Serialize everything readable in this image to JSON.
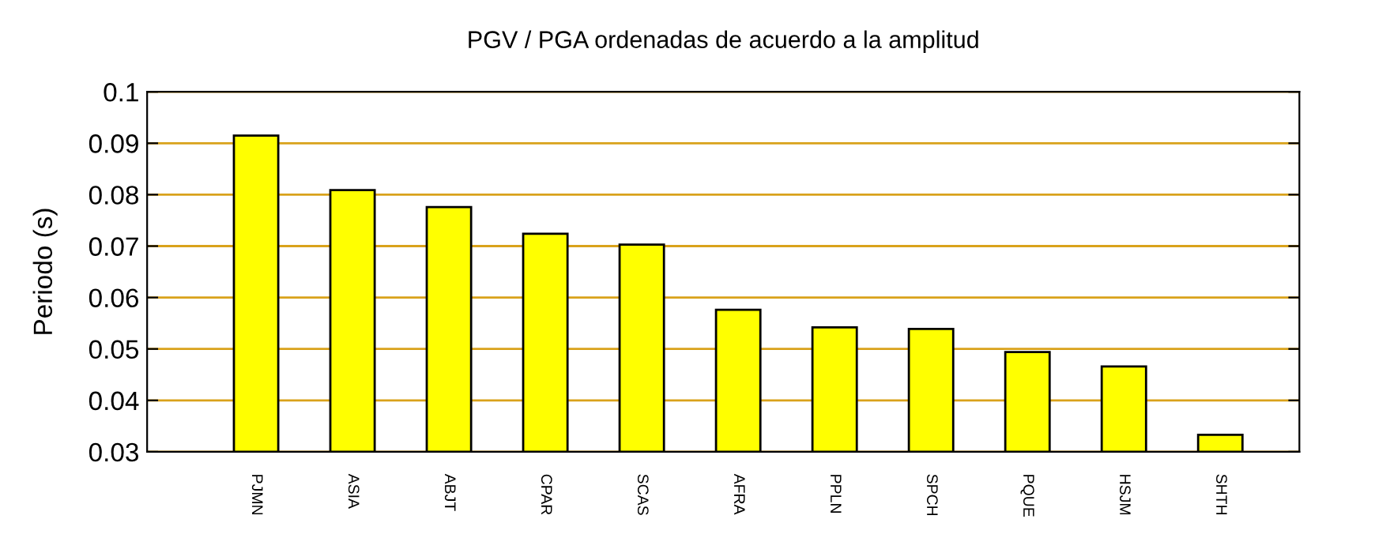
{
  "chart_data": {
    "type": "bar",
    "title": "PGV / PGA ordenadas de acuerdo a la amplitud",
    "ylabel": "Periodo (s)",
    "categories": [
      "PJMN",
      "ASIA",
      "ABJT",
      "CPAR",
      "SCAS",
      "AFRA",
      "PPLN",
      "SPCH",
      "PQUE",
      "HSJM",
      "SHTH"
    ],
    "values": [
      0.0915,
      0.0809,
      0.0776,
      0.0724,
      0.0703,
      0.0576,
      0.0542,
      0.0539,
      0.0494,
      0.0466,
      0.0333
    ],
    "color": "#ffff00",
    "ylim": [
      0.03,
      0.1
    ],
    "yticks": [
      0.03,
      0.04,
      0.05,
      0.06,
      0.07,
      0.08,
      0.09,
      0.1
    ],
    "grid": "y"
  }
}
